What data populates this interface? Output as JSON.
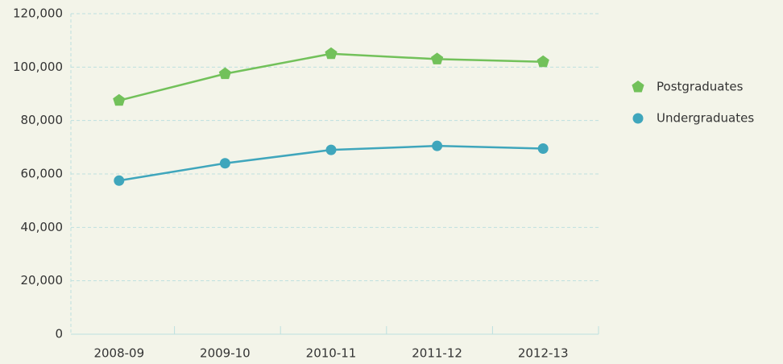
{
  "chart_data": {
    "type": "line",
    "categories": [
      "2008-09",
      "2009-10",
      "2010-11",
      "2011-12",
      "2012-13"
    ],
    "series": [
      {
        "name": "Postgraduates",
        "color": "#72c15a",
        "marker": "pentagon",
        "values": [
          87500,
          97500,
          105000,
          103000,
          102000
        ]
      },
      {
        "name": "Undergraduates",
        "color": "#3fa6bc",
        "marker": "circle",
        "values": [
          57500,
          64000,
          69000,
          70500,
          69500
        ]
      }
    ],
    "ylim": [
      0,
      120000
    ],
    "yticks": [
      0,
      {
        "value": 20000,
        "label": "20,000"
      },
      {
        "value": 40000,
        "label": "40,000"
      },
      {
        "value": 60000,
        "label": "60,000"
      },
      {
        "value": 80000,
        "label": "80,000"
      },
      {
        "value": 100000,
        "label": "100,000"
      },
      {
        "value": 120000,
        "label": "120,000"
      }
    ],
    "grid": true,
    "legend": "right"
  }
}
